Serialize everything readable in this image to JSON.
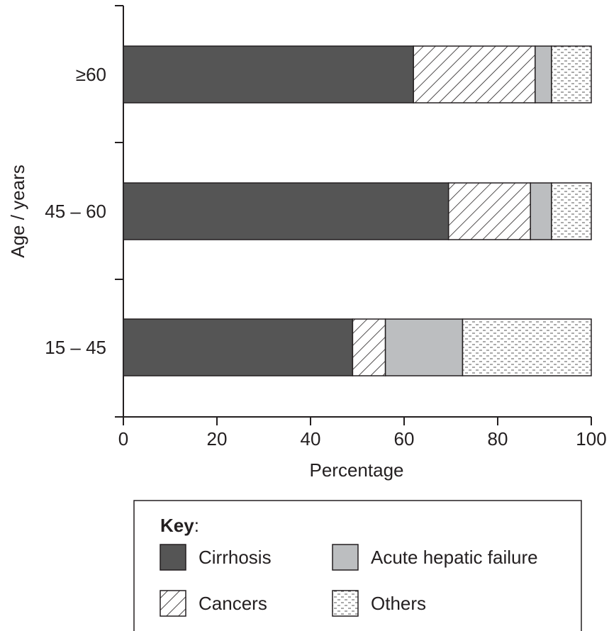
{
  "chart_data": {
    "type": "bar",
    "orientation": "horizontal",
    "stacked": true,
    "xlabel": "Percentage",
    "ylabel": "Age / years",
    "xlim": [
      0,
      100
    ],
    "x_ticks": [
      "0",
      "20",
      "40",
      "60",
      "80",
      "100"
    ],
    "categories": [
      "≥60",
      "45 – 60",
      "15 – 45"
    ],
    "series": [
      {
        "name": "Cirrhosis",
        "values": [
          62,
          69.5,
          49
        ],
        "color": "#555555",
        "pattern": "solid"
      },
      {
        "name": "Cancers",
        "values": [
          26,
          17.5,
          7
        ],
        "color": "#ffffff",
        "pattern": "diagonal-hatch"
      },
      {
        "name": "Acute hepatic failure",
        "values": [
          3.5,
          4.5,
          16.5
        ],
        "color": "#bcbec0",
        "pattern": "solid"
      },
      {
        "name": "Others",
        "values": [
          8.5,
          8.5,
          27.5
        ],
        "color": "#ffffff",
        "pattern": "dashed-dots"
      }
    ],
    "grid": false,
    "legend_placement": "bottom",
    "legend_title": "Key",
    "legend_title_suffix": ":"
  }
}
